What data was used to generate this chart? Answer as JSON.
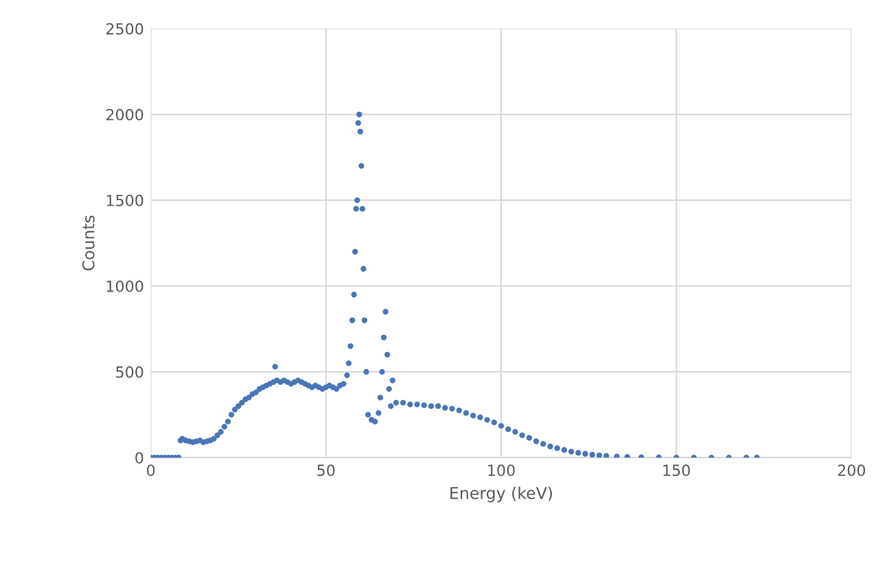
{
  "chart_data": {
    "type": "scatter",
    "xlabel": "Energy (keV)",
    "ylabel": "Counts",
    "xlim": [
      0,
      200
    ],
    "xticks": [
      0,
      50,
      100,
      150,
      200
    ],
    "ylim": [
      0,
      2500
    ],
    "yticks": [
      0,
      500,
      1000,
      1500,
      2000,
      2500
    ],
    "grid": true,
    "marker": "circle",
    "series": [
      {
        "color": "#4a76b8",
        "x": [
          0,
          1,
          2,
          3,
          4,
          5,
          6,
          7,
          8,
          8.5,
          9,
          10,
          11,
          12,
          13,
          14,
          15,
          16,
          17,
          18,
          19,
          20,
          21,
          22,
          23,
          24,
          25,
          26,
          27,
          28,
          29,
          30,
          31,
          32,
          33,
          34,
          35,
          35.5,
          36,
          37,
          38,
          39,
          40,
          41,
          42,
          43,
          44,
          45,
          46,
          47,
          48,
          49,
          50,
          51,
          52,
          53,
          54,
          55,
          56,
          56.5,
          57,
          57.5,
          58,
          58.3,
          58.6,
          58.9,
          59.2,
          59.5,
          59.8,
          60.1,
          60.4,
          60.7,
          61,
          61.5,
          62,
          63,
          64,
          65,
          65.5,
          66,
          66.5,
          67,
          67.5,
          68,
          68.5,
          69,
          70,
          72,
          74,
          76,
          78,
          80,
          82,
          84,
          86,
          88,
          90,
          92,
          94,
          96,
          98,
          100,
          102,
          104,
          106,
          108,
          110,
          112,
          114,
          116,
          118,
          120,
          122,
          124,
          126,
          128,
          130,
          133,
          136,
          140,
          145,
          150,
          155,
          160,
          165,
          170,
          173
        ],
        "values": [
          0,
          0,
          0,
          0,
          0,
          0,
          0,
          0,
          0,
          100,
          110,
          100,
          95,
          90,
          95,
          100,
          90,
          95,
          100,
          110,
          130,
          150,
          180,
          210,
          250,
          280,
          300,
          320,
          340,
          350,
          370,
          380,
          400,
          410,
          420,
          430,
          440,
          530,
          450,
          440,
          450,
          440,
          430,
          440,
          450,
          440,
          430,
          420,
          410,
          420,
          410,
          400,
          410,
          420,
          410,
          400,
          420,
          430,
          480,
          550,
          650,
          800,
          950,
          1200,
          1450,
          1500,
          1950,
          2000,
          1900,
          1700,
          1450,
          1100,
          800,
          500,
          250,
          220,
          210,
          260,
          350,
          500,
          700,
          850,
          600,
          400,
          300,
          450,
          320,
          320,
          310,
          310,
          305,
          300,
          300,
          290,
          285,
          275,
          260,
          245,
          235,
          220,
          205,
          185,
          165,
          150,
          130,
          115,
          95,
          80,
          65,
          55,
          45,
          35,
          28,
          22,
          17,
          13,
          10,
          6,
          4,
          2,
          1,
          0,
          0,
          0,
          0,
          0,
          0
        ]
      }
    ]
  }
}
